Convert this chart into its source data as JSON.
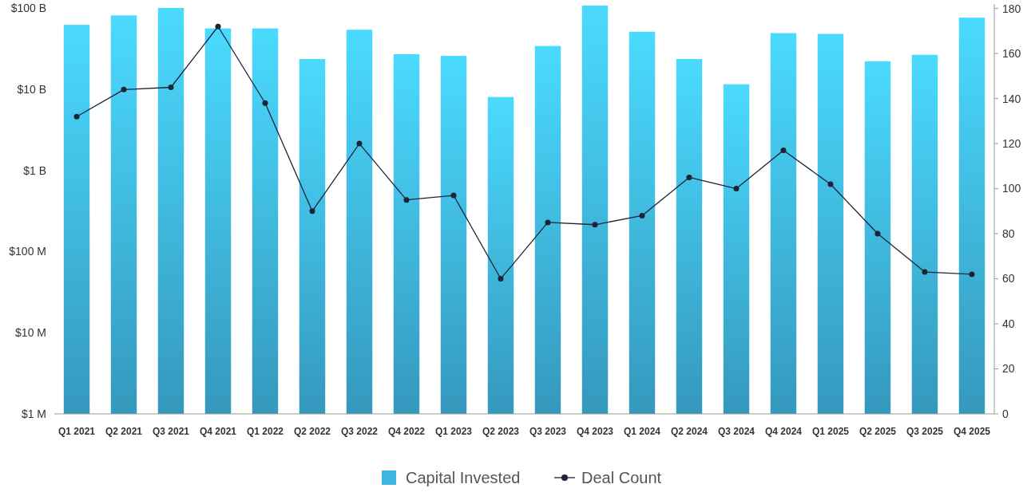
{
  "chart_data": {
    "type": "bar",
    "categories": [
      "Q1 2021",
      "Q2 2021",
      "Q3 2021",
      "Q4 2021",
      "Q1 2022",
      "Q2 2022",
      "Q3 2022",
      "Q4 2022",
      "Q1 2023",
      "Q2 2023",
      "Q3 2023",
      "Q4 2023",
      "Q1 2024",
      "Q2 2024",
      "Q3 2024",
      "Q4 2024",
      "Q1 2025",
      "Q2 2025",
      "Q3 2025",
      "Q4 2025"
    ],
    "series": [
      {
        "name": "Capital Invested",
        "color": "#3fb6e2",
        "values": [
          62000000000,
          81000000000,
          100000000000,
          56000000000,
          56000000000,
          23500000000,
          54000000000,
          27000000000,
          25700000000,
          8000000000,
          34000000000,
          107000000000,
          51000000000,
          23500000000,
          11500000000,
          49000000000,
          48000000000,
          22000000000,
          26500000000,
          76000000000
        ]
      },
      {
        "name": "Deal Count",
        "type": "line",
        "axis": "y2",
        "color": "#1e2437",
        "values": [
          132,
          144,
          145,
          172,
          138,
          90,
          120,
          95,
          97,
          60,
          85,
          84,
          88,
          105,
          100,
          117,
          102,
          80,
          63,
          62
        ]
      }
    ],
    "log": "y",
    "ylim": [
      1000000,
      112000000000
    ],
    "yticks": [
      {
        "value": 1000000,
        "label": "$1 M"
      },
      {
        "value": 10000000,
        "label": "$10 M"
      },
      {
        "value": 100000000,
        "label": "$100 M"
      },
      {
        "value": 1000000000,
        "label": "$1 B"
      },
      {
        "value": 10000000000,
        "label": "$10 B"
      },
      {
        "value": 100000000000,
        "label": "$100 B"
      }
    ],
    "y2lim": [
      0,
      182
    ],
    "y2ticks": [
      0,
      20,
      40,
      60,
      80,
      100,
      120,
      140,
      160,
      180
    ],
    "marker": "circle",
    "legend": "bottom",
    "grid": false
  }
}
